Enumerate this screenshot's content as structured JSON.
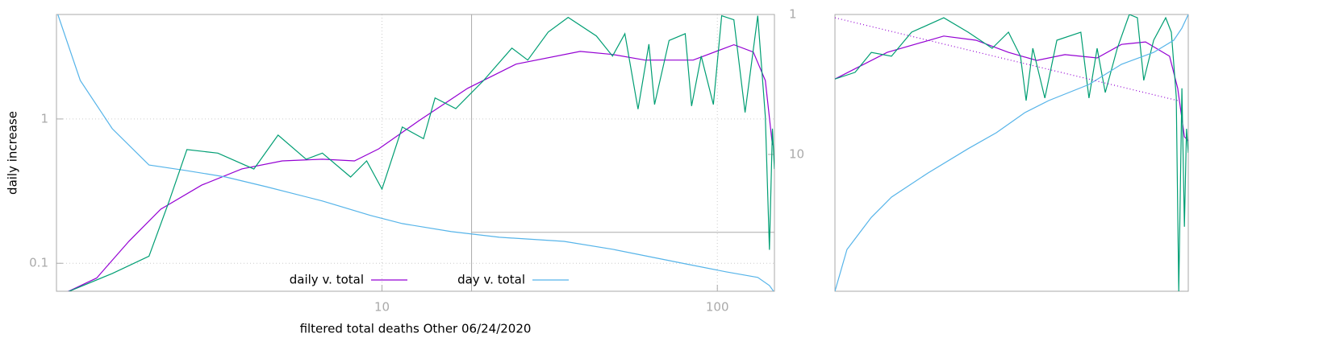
{
  "chart_data": [
    {
      "type": "line",
      "xlabel": "filtered total deaths Other 06/24/2020",
      "ylabel": "daily increase",
      "xscale": "log",
      "yscale": "log",
      "y2scale": "log",
      "y2reverse": true,
      "grid": true,
      "legend": "bottom center",
      "xlim": [
        1.07,
        148
      ],
      "xticks": [
        10,
        100
      ],
      "ylim": [
        0.064,
        5.3
      ],
      "yticks": [
        0.1,
        1
      ],
      "y2lim": [
        1,
        95
      ],
      "y2ticks": [
        1,
        10
      ],
      "crosshair": {
        "x": 18.5,
        "y2": 36
      },
      "series": [
        {
          "name": "daily v. total",
          "color": "#9400d3",
          "x": [
            1.13,
            1.41,
            1.76,
            2.19,
            2.9,
            3.82,
            5.04,
            6.64,
            8.28,
            9.78,
            12.9,
            18.0,
            25.1,
            39.0,
            48.7,
            60.8,
            84.7,
            112,
            128,
            139,
            146
          ],
          "values": [
            0.062,
            0.079,
            0.142,
            0.237,
            0.348,
            0.451,
            0.512,
            0.526,
            0.512,
            0.621,
            0.974,
            1.63,
            2.4,
            2.94,
            2.8,
            2.56,
            2.56,
            3.27,
            2.91,
            1.85,
            0.66
          ]
        },
        {
          "name": "day v. total",
          "color": "#56b4e9",
          "axis": "y2",
          "x": [
            1.08,
            1.26,
            1.57,
            2.02,
            2.59,
            3.42,
            4.51,
            6.64,
            9.25,
            11.5,
            16.1,
            22.4,
            34.9,
            48.7,
            60.8,
            80.2,
            106,
            132,
            143,
            147
          ],
          "values": [
            1,
            2.96,
            6.55,
            11.9,
            13.0,
            14.5,
            17.0,
            21.5,
            27.3,
            31.2,
            35.6,
            39.1,
            41.8,
            47.6,
            53,
            60.5,
            69,
            75.7,
            86.5,
            94.8
          ]
        },
        {
          "color": "#009e73",
          "x": [
            1.13,
            1.57,
            2.02,
            2.32,
            2.62,
            3.24,
            4.15,
            4.9,
            5.94,
            6.64,
            8.06,
            9.0,
            10.0,
            11.5,
            13.3,
            14.4,
            16.6,
            20.1,
            24.4,
            27.2,
            31.3,
            35.9,
            43.6,
            48.7,
            53,
            58,
            62.5,
            65,
            71.8,
            80.2,
            83.8,
            89.5,
            97.3,
            103,
            112,
            121,
            132,
            139,
            143,
            146,
            148
          ],
          "values": [
            0.062,
            0.085,
            0.112,
            0.27,
            0.614,
            0.58,
            0.45,
            0.773,
            0.526,
            0.58,
            0.396,
            0.512,
            0.327,
            0.88,
            0.73,
            1.4,
            1.18,
            1.85,
            3.1,
            2.56,
            4.0,
            5.06,
            3.76,
            2.73,
            3.9,
            1.17,
            3.3,
            1.26,
            3.5,
            3.9,
            1.23,
            2.73,
            1.26,
            5.19,
            4.87,
            1.11,
            5.19,
            1.04,
            0.124,
            0.857,
            0.45
          ]
        }
      ]
    },
    {
      "type": "line",
      "xlim": [
        0,
        1
      ],
      "ylim": [
        0,
        1
      ],
      "series": [
        {
          "color": "#9400d3",
          "x": [
            0,
            0.148,
            0.308,
            0.399,
            0.491,
            0.571,
            0.651,
            0.742,
            0.811,
            0.879,
            0.947,
            0.97,
            0.989,
            1.0
          ],
          "values": [
            0.767,
            0.863,
            0.922,
            0.907,
            0.863,
            0.834,
            0.855,
            0.843,
            0.892,
            0.901,
            0.849,
            0.733,
            0.558,
            0.544
          ]
        },
        {
          "color": "#009e73",
          "x": [
            0,
            0.057,
            0.103,
            0.16,
            0.217,
            0.308,
            0.377,
            0.445,
            0.491,
            0.525,
            0.541,
            0.56,
            0.594,
            0.628,
            0.696,
            0.719,
            0.742,
            0.765,
            0.799,
            0.833,
            0.856,
            0.874,
            0.902,
            0.936,
            0.952,
            0.966,
            0.973,
            0.982,
            0.989,
            0.995,
            1.0
          ],
          "values": [
            0.767,
            0.791,
            0.863,
            0.849,
            0.936,
            0.988,
            0.936,
            0.878,
            0.936,
            0.849,
            0.689,
            0.878,
            0.698,
            0.907,
            0.936,
            0.698,
            0.878,
            0.718,
            0.878,
            1.0,
            0.988,
            0.762,
            0.907,
            0.988,
            0.936,
            0.703,
            0,
            0.733,
            0.233,
            0.587,
            0.5
          ]
        },
        {
          "color": "#56b4e9",
          "x": [
            0,
            0.034,
            0.103,
            0.16,
            0.263,
            0.377,
            0.457,
            0.537,
            0.605,
            0.719,
            0.811,
            0.902,
            0.959,
            0.982,
            1.0
          ],
          "values": [
            0,
            0.151,
            0.267,
            0.34,
            0.427,
            0.515,
            0.573,
            0.645,
            0.689,
            0.747,
            0.82,
            0.863,
            0.907,
            0.951,
            1.0
          ]
        },
        {
          "color": "#9400d3",
          "dash": "dotted",
          "x": [
            0,
            0.97
          ],
          "values": [
            0.988,
            0.689
          ]
        }
      ]
    }
  ]
}
